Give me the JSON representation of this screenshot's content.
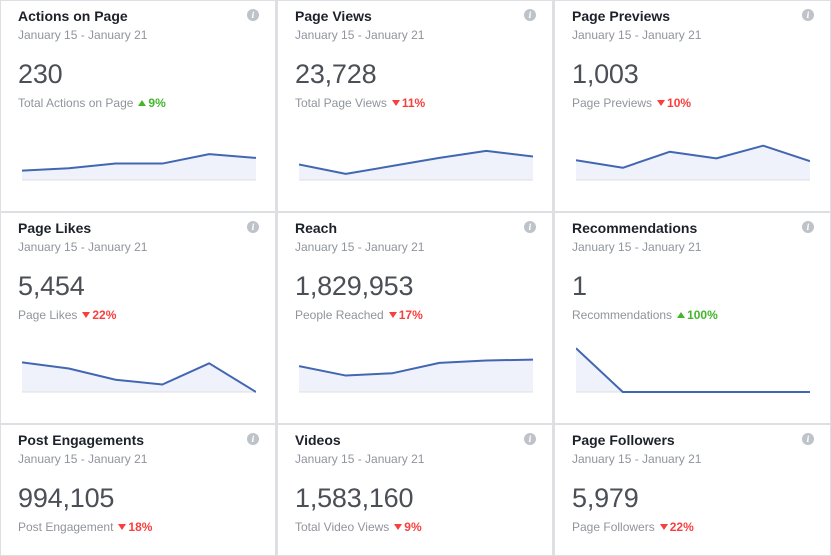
{
  "date_range": "January 15 - January 21",
  "colors": {
    "up": "#42b72a",
    "down": "#fa3e3e",
    "line": "#4267b2",
    "area": "#eff2fb"
  },
  "cards": [
    {
      "title": "Actions on Page",
      "value": "230",
      "sub_label": "Total Actions on Page",
      "trend": "up",
      "change": "9%",
      "spark": [
        0.2,
        0.25,
        0.35,
        0.35,
        0.55,
        0.47
      ]
    },
    {
      "title": "Page Views",
      "value": "23,728",
      "sub_label": "Total Page Views",
      "trend": "down",
      "change": "11%",
      "spark": [
        0.33,
        0.13,
        0.3,
        0.47,
        0.62,
        0.5
      ]
    },
    {
      "title": "Page Previews",
      "value": "1,003",
      "sub_label": "Page Previews",
      "trend": "down",
      "change": "10%",
      "spark": [
        0.42,
        0.26,
        0.6,
        0.46,
        0.73,
        0.4
      ]
    },
    {
      "title": "Page Likes",
      "value": "5,454",
      "sub_label": "Page Likes",
      "trend": "down",
      "change": "22%",
      "spark": [
        0.63,
        0.5,
        0.26,
        0.16,
        0.61,
        0.0
      ]
    },
    {
      "title": "Reach",
      "value": "1,829,953",
      "sub_label": "People Reached",
      "trend": "down",
      "change": "17%",
      "spark": [
        0.55,
        0.35,
        0.4,
        0.62,
        0.67,
        0.69
      ]
    },
    {
      "title": "Recommendations",
      "value": "1",
      "sub_label": "Recommendations",
      "trend": "up",
      "change": "100%",
      "spark": [
        0.93,
        0.0,
        0.0,
        0.0,
        0.0,
        0.0
      ]
    },
    {
      "title": "Post Engagements",
      "value": "994,105",
      "sub_label": "Post Engagement",
      "trend": "down",
      "change": "18%",
      "spark": []
    },
    {
      "title": "Videos",
      "value": "1,583,160",
      "sub_label": "Total Video Views",
      "trend": "down",
      "change": "9%",
      "spark": []
    },
    {
      "title": "Page Followers",
      "value": "5,979",
      "sub_label": "Page Followers",
      "trend": "down",
      "change": "22%",
      "spark": []
    }
  ]
}
